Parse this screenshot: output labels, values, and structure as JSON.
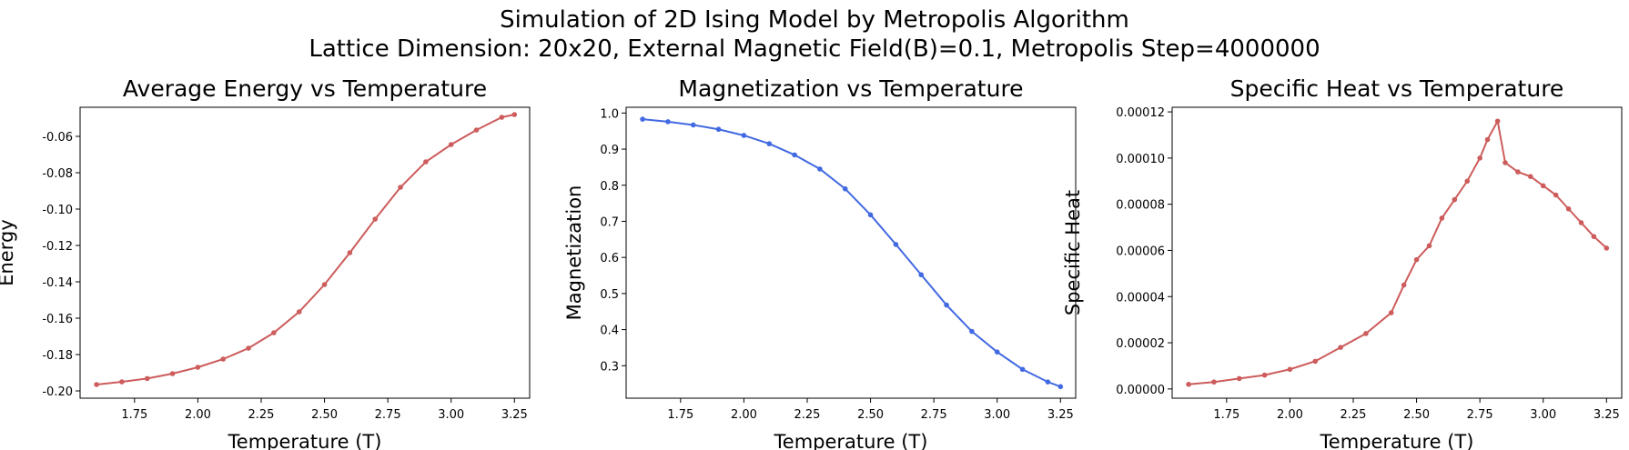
{
  "figure": {
    "title_line1": "Simulation of 2D Ising Model by Metropolis Algorithm",
    "title_line2": "Lattice Dimension: 20x20, External Magnetic Field(B)=0.1, Metropolis Step=4000000"
  },
  "chart_data": [
    {
      "type": "line",
      "title": "Average Energy vs Temperature",
      "xlabel": "Temperature (T)",
      "ylabel": "Energy",
      "xlim": [
        1.535,
        3.31
      ],
      "ylim": [
        -0.204,
        -0.044
      ],
      "xticks": [
        "1.75",
        "2.00",
        "2.25",
        "2.50",
        "2.75",
        "3.00",
        "3.25"
      ],
      "yticks": [
        "-0.20",
        "-0.18",
        "-0.16",
        "-0.14",
        "-0.12",
        "-0.10",
        "-0.08",
        "-0.06"
      ],
      "color": "#cd5c5c",
      "grid": false,
      "series": [
        {
          "x": [
            1.6,
            1.7,
            1.8,
            1.9,
            2.0,
            2.1,
            2.2,
            2.3,
            2.4,
            2.5,
            2.6,
            2.7,
            2.8,
            2.9,
            3.0,
            3.1,
            3.2,
            3.25
          ],
          "y": [
            -0.1965,
            -0.195,
            -0.1932,
            -0.1905,
            -0.187,
            -0.1825,
            -0.1765,
            -0.168,
            -0.1565,
            -0.1415,
            -0.124,
            -0.1055,
            -0.088,
            -0.074,
            -0.0645,
            -0.0565,
            -0.0495,
            -0.048
          ]
        }
      ]
    },
    {
      "type": "line",
      "title": "Magnetization vs Temperature",
      "xlabel": "Temperature (T)",
      "ylabel": "Magnetization",
      "xlim": [
        1.535,
        3.31
      ],
      "ylim": [
        0.21,
        1.016
      ],
      "xticks": [
        "1.75",
        "2.00",
        "2.25",
        "2.50",
        "2.75",
        "3.00",
        "3.25"
      ],
      "yticks": [
        "0.3",
        "0.4",
        "0.5",
        "0.6",
        "0.7",
        "0.8",
        "0.9",
        "1.0"
      ],
      "color": "#4169e1",
      "grid": false,
      "series": [
        {
          "x": [
            1.6,
            1.7,
            1.8,
            1.9,
            2.0,
            2.1,
            2.2,
            2.3,
            2.4,
            2.5,
            2.6,
            2.7,
            2.8,
            2.9,
            3.0,
            3.1,
            3.2,
            3.25
          ],
          "y": [
            0.983,
            0.976,
            0.967,
            0.955,
            0.938,
            0.915,
            0.884,
            0.845,
            0.79,
            0.718,
            0.636,
            0.552,
            0.468,
            0.395,
            0.338,
            0.29,
            0.255,
            0.242
          ]
        }
      ]
    },
    {
      "type": "line",
      "title": "Specific Heat vs Temperature",
      "xlabel": "Temperature (T)",
      "ylabel": "Specific Heat",
      "xlim": [
        1.535,
        3.31
      ],
      "ylim": [
        -4e-06,
        0.000122
      ],
      "xticks": [
        "1.75",
        "2.00",
        "2.25",
        "2.50",
        "2.75",
        "3.00",
        "3.25"
      ],
      "yticks": [
        "0.00000",
        "0.00002",
        "0.00004",
        "0.00006",
        "0.00008",
        "0.00010",
        "0.00012"
      ],
      "color": "#cd5c5c",
      "grid": false,
      "series": [
        {
          "x": [
            1.6,
            1.7,
            1.8,
            1.9,
            2.0,
            2.1,
            2.2,
            2.3,
            2.4,
            2.45,
            2.5,
            2.55,
            2.6,
            2.65,
            2.7,
            2.75,
            2.78,
            2.82,
            2.85,
            2.9,
            2.95,
            3.0,
            3.05,
            3.1,
            3.15,
            3.2,
            3.25
          ],
          "y": [
            2e-06,
            3e-06,
            4.5e-06,
            6e-06,
            8.5e-06,
            1.2e-05,
            1.8e-05,
            2.4e-05,
            3.3e-05,
            4.5e-05,
            5.6e-05,
            6.2e-05,
            7.4e-05,
            8.2e-05,
            9e-05,
            0.0001,
            0.000108,
            0.000116,
            9.8e-05,
            9.4e-05,
            9.2e-05,
            8.8e-05,
            8.4e-05,
            7.8e-05,
            7.2e-05,
            6.6e-05,
            6.1e-05
          ]
        }
      ]
    }
  ]
}
